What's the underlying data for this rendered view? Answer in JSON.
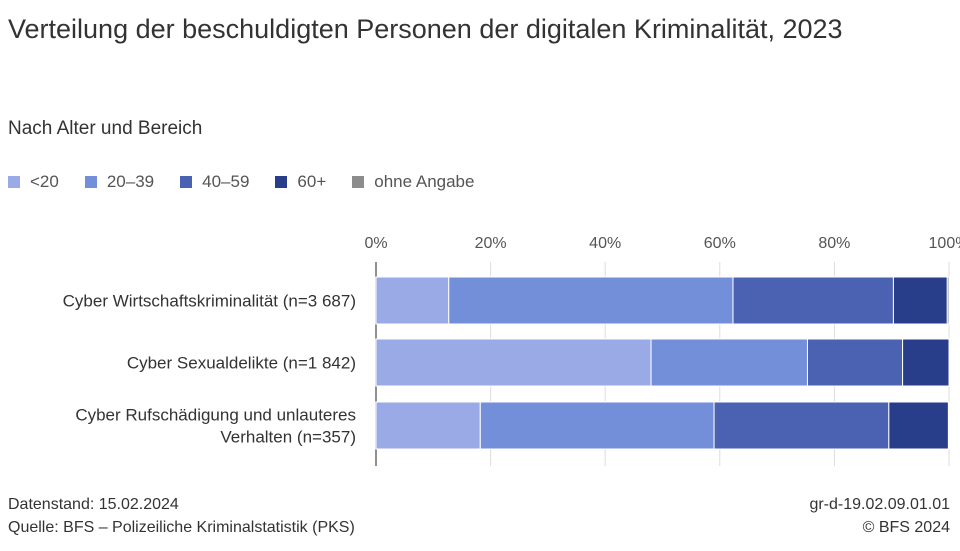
{
  "header": {
    "title": "Verteilung der beschuldigten Personen der digitalen Kriminalität, 2023",
    "subtitle": "Nach Alter und Bereich"
  },
  "legend": [
    {
      "label": "<20",
      "color": "#9aaae6"
    },
    {
      "label": "20–39",
      "color": "#738fda"
    },
    {
      "label": "40–59",
      "color": "#4b62b3"
    },
    {
      "label": "60+",
      "color": "#283e8a"
    },
    {
      "label": "ohne Angabe",
      "color": "#8c8c8c"
    }
  ],
  "chart_data": {
    "type": "bar",
    "orientation": "horizontal",
    "stacked": true,
    "title": "Verteilung der beschuldigten Personen der digitalen Kriminalität, 2023",
    "subtitle": "Nach Alter und Bereich",
    "categories": [
      "Cyber Wirtschaftskriminalität (n=3 687)",
      "Cyber Sexualdelikte (n=1 842)",
      "Cyber Rufschädigung und unlauteres Verhalten (n=357)"
    ],
    "category_lines": [
      [
        "Cyber Wirtschaftskriminalität (n=3 687)"
      ],
      [
        "Cyber Sexualdelikte (n=1 842)"
      ],
      [
        "Cyber Rufschädigung und unlauteres",
        "Verhalten (n=357)"
      ]
    ],
    "series": [
      {
        "name": "<20",
        "color": "#9aaae6",
        "values": [
          12.7,
          48.0,
          18.2
        ]
      },
      {
        "name": "20–39",
        "color": "#738fda",
        "values": [
          49.6,
          27.3,
          40.8
        ]
      },
      {
        "name": "40–59",
        "color": "#4b62b3",
        "values": [
          28.0,
          16.6,
          30.5
        ]
      },
      {
        "name": "60+",
        "color": "#283e8a",
        "values": [
          9.4,
          8.1,
          10.4
        ]
      },
      {
        "name": "ohne Angabe",
        "color": "#8c8c8c",
        "values": [
          0.3,
          0.0,
          0.1
        ]
      }
    ],
    "xlim": [
      0,
      100
    ],
    "ticks": [
      "0%",
      "20%",
      "40%",
      "60%",
      "80%",
      "100%"
    ],
    "tick_values": [
      0,
      20,
      40,
      60,
      80,
      100
    ],
    "grid": true,
    "legend_position": "top"
  },
  "footer": {
    "datenstand": "Datenstand: 15.02.2024",
    "quelle": "Quelle: BFS – Polizeiliche Kriminalstatistik (PKS)",
    "code": "gr-d-19.02.09.01.01",
    "copyright": "© BFS 2024"
  }
}
